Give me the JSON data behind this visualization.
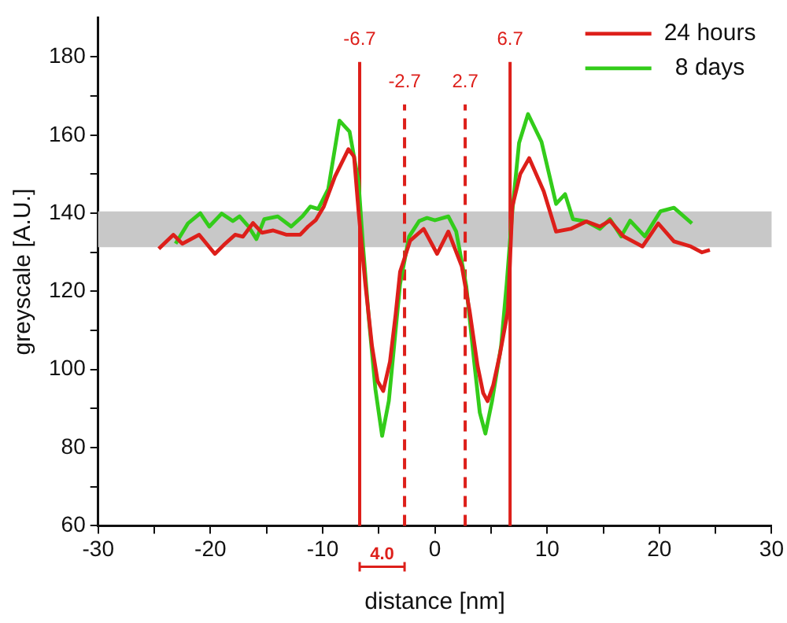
{
  "chart_data": {
    "type": "line",
    "xlabel": "distance [nm]",
    "ylabel": "greyscale [A.U.]",
    "xlim": [
      -30,
      30
    ],
    "xticks": [
      -30,
      {
        "value": -25,
        "label": null
      },
      -20,
      {
        "value": -15,
        "label": null
      },
      -10,
      {
        "value": -5,
        "label": null
      },
      0,
      {
        "value": 5,
        "label": null
      },
      10,
      {
        "value": 15,
        "label": null
      },
      20,
      {
        "value": 25,
        "label": null
      },
      30
    ],
    "ylim": [
      60,
      190
    ],
    "yticks": [
      60,
      {
        "value": 70,
        "label": null
      },
      80,
      {
        "value": 90,
        "label": null
      },
      100,
      {
        "value": 110,
        "label": null
      },
      120,
      {
        "value": 130,
        "label": null
      },
      140,
      {
        "value": 150,
        "label": null
      },
      160,
      {
        "value": 170,
        "label": null
      },
      180
    ],
    "grid": false,
    "legend": "top right",
    "marker": "none",
    "line_style": "solid",
    "series": [
      {
        "name": "24 hours",
        "color": "#dd1f1a",
        "x": [
          -24.6,
          -23.3,
          -22.5,
          -21.0,
          -19.6,
          -18.8,
          -17.8,
          -17.1,
          -16.2,
          -15.4,
          -14.4,
          -13.2,
          -12.0,
          -11.3,
          -10.6,
          -9.9,
          -8.9,
          -7.7,
          -7.2,
          -6.8,
          -6.2,
          -5.6,
          -5.1,
          -4.6,
          -4.0,
          -3.5,
          -3.1,
          -2.2,
          -1.0,
          0.2,
          1.2,
          2.4,
          3.1,
          3.8,
          4.3,
          4.7,
          5.2,
          5.8,
          6.5,
          6.9,
          7.6,
          8.4,
          9.7,
          10.8,
          12.1,
          13.5,
          14.7,
          15.6,
          16.8,
          18.5,
          19.9,
          21.3,
          22.8,
          23.8,
          24.5
        ],
        "values": [
          130.9,
          134.5,
          132.2,
          134.5,
          129.6,
          131.9,
          134.5,
          134.0,
          137.5,
          135.0,
          135.6,
          134.5,
          134.5,
          136.6,
          138.3,
          141.7,
          149.4,
          156.4,
          154.5,
          140.5,
          122,
          106,
          97,
          94.5,
          102,
          114,
          125,
          133,
          136,
          129.6,
          135.3,
          126.4,
          114.9,
          101,
          94,
          91.9,
          96,
          104,
          114.9,
          141.7,
          150,
          154.1,
          145.6,
          135.3,
          136.0,
          137.9,
          136.6,
          138.1,
          134.1,
          131.5,
          137.4,
          132.8,
          131.5,
          130.0,
          130.6
        ]
      },
      {
        "name": "8 days",
        "color": "#33cc1a",
        "x": [
          -23.1,
          -22.0,
          -20.9,
          -20.1,
          -19.0,
          -18.0,
          -17.4,
          -16.6,
          -15.9,
          -15.2,
          -14.0,
          -12.8,
          -11.8,
          -11.1,
          -10.4,
          -9.5,
          -8.5,
          -7.6,
          -6.8,
          -6.4,
          -5.9,
          -5.3,
          -4.7,
          -4.1,
          -3.6,
          -3.1,
          -2.3,
          -1.4,
          -0.7,
          0.0,
          1.2,
          1.9,
          2.8,
          3.5,
          4.0,
          4.5,
          5.1,
          5.9,
          6.4,
          6.9,
          7.5,
          8.3,
          9.5,
          10.8,
          11.6,
          12.3,
          13.5,
          14.7,
          15.6,
          16.6,
          17.4,
          18.7,
          20.1,
          21.3,
          22.9
        ],
        "values": [
          132.2,
          137.4,
          140.0,
          136.6,
          139.9,
          138.0,
          139.2,
          136.6,
          133.4,
          138.5,
          139.2,
          136.6,
          139.2,
          141.7,
          141.1,
          146.2,
          163.7,
          160.9,
          148.0,
          131.6,
          113.6,
          95,
          83,
          92,
          107,
          121.9,
          134,
          138.0,
          138.8,
          138.2,
          139.2,
          135.3,
          121.3,
          102,
          89,
          83.6,
          92,
          106,
          122,
          140.5,
          158,
          165.4,
          158.3,
          142.4,
          144.9,
          138.5,
          137.9,
          136.0,
          138.5,
          134.1,
          138.1,
          134.1,
          140.5,
          141.4,
          137.4
        ]
      }
    ],
    "bands": [
      {
        "axis": "y",
        "from": 131.3,
        "to": 140.5,
        "color": "#c8c8c8"
      }
    ],
    "ref_lines": [
      {
        "axis": "x",
        "value": -6.7,
        "label": "-6.7",
        "color": "#dd1f1a",
        "line_style": "solid"
      },
      {
        "axis": "x",
        "value": -2.7,
        "label": "-2.7",
        "color": "#dd1f1a",
        "line_style": "dashed"
      },
      {
        "axis": "x",
        "value": 2.7,
        "label": "2.7",
        "color": "#dd1f1a",
        "line_style": "dashed"
      },
      {
        "axis": "x",
        "value": 6.7,
        "label": "6.7",
        "color": "#dd1f1a",
        "line_style": "solid"
      }
    ],
    "annotations": [
      "4.0"
    ]
  }
}
